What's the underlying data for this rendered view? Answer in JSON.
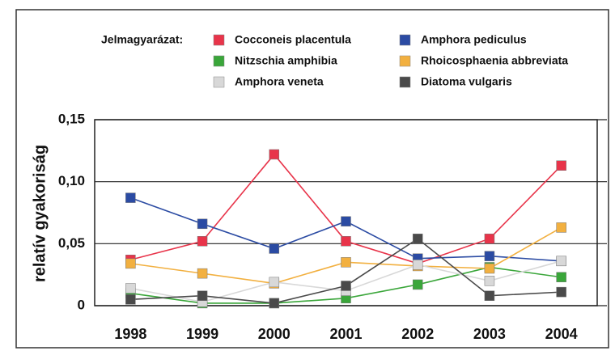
{
  "chart_data": {
    "type": "line",
    "legend_title": "Jelmagyarázat:",
    "y_label": "relatív gyakoriság",
    "categories": [
      "1998",
      "1999",
      "2000",
      "2001",
      "2002",
      "2003",
      "2004"
    ],
    "series": [
      {
        "name": "Cocconeis placentula",
        "color": "#e8344a",
        "values": [
          0.037,
          0.052,
          0.122,
          0.052,
          0.034,
          0.054,
          0.113
        ]
      },
      {
        "name": "Amphora pediculus",
        "color": "#2b4ba3",
        "values": [
          0.087,
          0.066,
          0.046,
          0.068,
          0.038,
          0.04,
          0.036
        ]
      },
      {
        "name": "Nitzschia amphibia",
        "color": "#3aa63a",
        "values": [
          0.01,
          0.002,
          0.002,
          0.006,
          0.017,
          0.031,
          0.023
        ]
      },
      {
        "name": "Rhoicosphaenia abbreviata",
        "color": "#f2b040",
        "values": [
          0.034,
          0.026,
          0.018,
          0.035,
          0.032,
          0.03,
          0.063
        ]
      },
      {
        "name": "Amphora veneta",
        "color": "#d8d8d8",
        "values": [
          0.014,
          0.003,
          0.019,
          0.012,
          0.033,
          0.02,
          0.036
        ]
      },
      {
        "name": "Diatoma vulgaris",
        "color": "#4a4a4a",
        "values": [
          0.005,
          0.008,
          0.002,
          0.016,
          0.054,
          0.008,
          0.011
        ]
      }
    ],
    "ylim": [
      0,
      0.15
    ],
    "yticks": [
      0,
      {
        "value": 0.05,
        "label": "0,05"
      },
      {
        "value": 0.1,
        "label": "0,10"
      },
      {
        "value": 0.15,
        "label": "0,15"
      }
    ],
    "grid": true
  }
}
